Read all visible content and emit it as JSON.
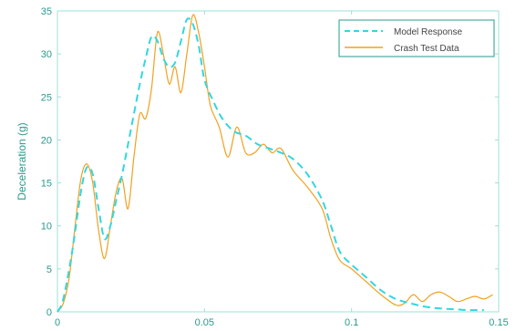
{
  "chart_data": {
    "type": "line",
    "title": "",
    "xlabel": "",
    "ylabel": "Deceleration (g)",
    "xlim": [
      0,
      0.15
    ],
    "ylim": [
      0,
      35
    ],
    "x_ticks": [
      0,
      0.05,
      0.1,
      0.15
    ],
    "x_tick_labels": [
      "0",
      "0.05",
      "0.1",
      "0.15"
    ],
    "y_ticks": [
      0,
      5,
      10,
      15,
      20,
      25,
      30,
      35
    ],
    "y_tick_labels": [
      "0",
      "5",
      "10",
      "15",
      "20",
      "25",
      "30",
      "35"
    ],
    "grid": false,
    "legend_position": "top-right",
    "series": [
      {
        "name": "Model Response",
        "color": "#33d6e0",
        "style": "dashed",
        "x": [
          0,
          0.002,
          0.005,
          0.008,
          0.01,
          0.012,
          0.014,
          0.016,
          0.018,
          0.02,
          0.022,
          0.024,
          0.026,
          0.028,
          0.03,
          0.032,
          0.034,
          0.036,
          0.038,
          0.04,
          0.042,
          0.044,
          0.046,
          0.048,
          0.05,
          0.053,
          0.056,
          0.06,
          0.064,
          0.068,
          0.072,
          0.076,
          0.08,
          0.085,
          0.09,
          0.093,
          0.096,
          0.1,
          0.105,
          0.11,
          0.115,
          0.12,
          0.125,
          0.13,
          0.135,
          0.14,
          0.145
        ],
        "y": [
          0,
          1.5,
          7,
          14,
          16.8,
          16,
          12,
          8.5,
          10,
          13,
          16,
          19.5,
          23,
          26.5,
          29.5,
          32,
          31.5,
          29.5,
          28.5,
          29,
          31.5,
          34,
          33.5,
          31,
          27,
          24.5,
          22.5,
          21,
          20.5,
          19.5,
          19,
          18.5,
          17.8,
          16,
          13,
          10,
          7,
          5.5,
          4,
          2.5,
          1.5,
          1,
          0.6,
          0.4,
          0.3,
          0.2,
          0.2
        ]
      },
      {
        "name": "Crash Test Data",
        "color": "#f2a020",
        "style": "solid",
        "x": [
          0,
          0.002,
          0.004,
          0.006,
          0.008,
          0.01,
          0.012,
          0.014,
          0.016,
          0.018,
          0.02,
          0.022,
          0.024,
          0.026,
          0.028,
          0.03,
          0.032,
          0.034,
          0.036,
          0.038,
          0.04,
          0.042,
          0.044,
          0.046,
          0.048,
          0.05,
          0.052,
          0.055,
          0.058,
          0.061,
          0.064,
          0.067,
          0.07,
          0.073,
          0.076,
          0.08,
          0.085,
          0.09,
          0.093,
          0.096,
          0.1,
          0.105,
          0.11,
          0.115,
          0.118,
          0.121,
          0.124,
          0.127,
          0.13,
          0.133,
          0.136,
          0.139,
          0.142,
          0.145,
          0.148
        ],
        "y": [
          0,
          1,
          4,
          10,
          15.5,
          17.2,
          15,
          9.5,
          6.2,
          10,
          14,
          15.5,
          12,
          18,
          23,
          22.5,
          26,
          32.5,
          30,
          26.5,
          28.5,
          25.5,
          30,
          34.5,
          32.5,
          28.5,
          24,
          21.5,
          18,
          21.5,
          18.5,
          18.5,
          19.5,
          18.5,
          19,
          16.5,
          14.5,
          12,
          8.5,
          6,
          5,
          3.5,
          2,
          0.8,
          1,
          2,
          1.2,
          2,
          2.3,
          1.8,
          1.2,
          1.5,
          1.8,
          1.5,
          2
        ]
      }
    ]
  }
}
